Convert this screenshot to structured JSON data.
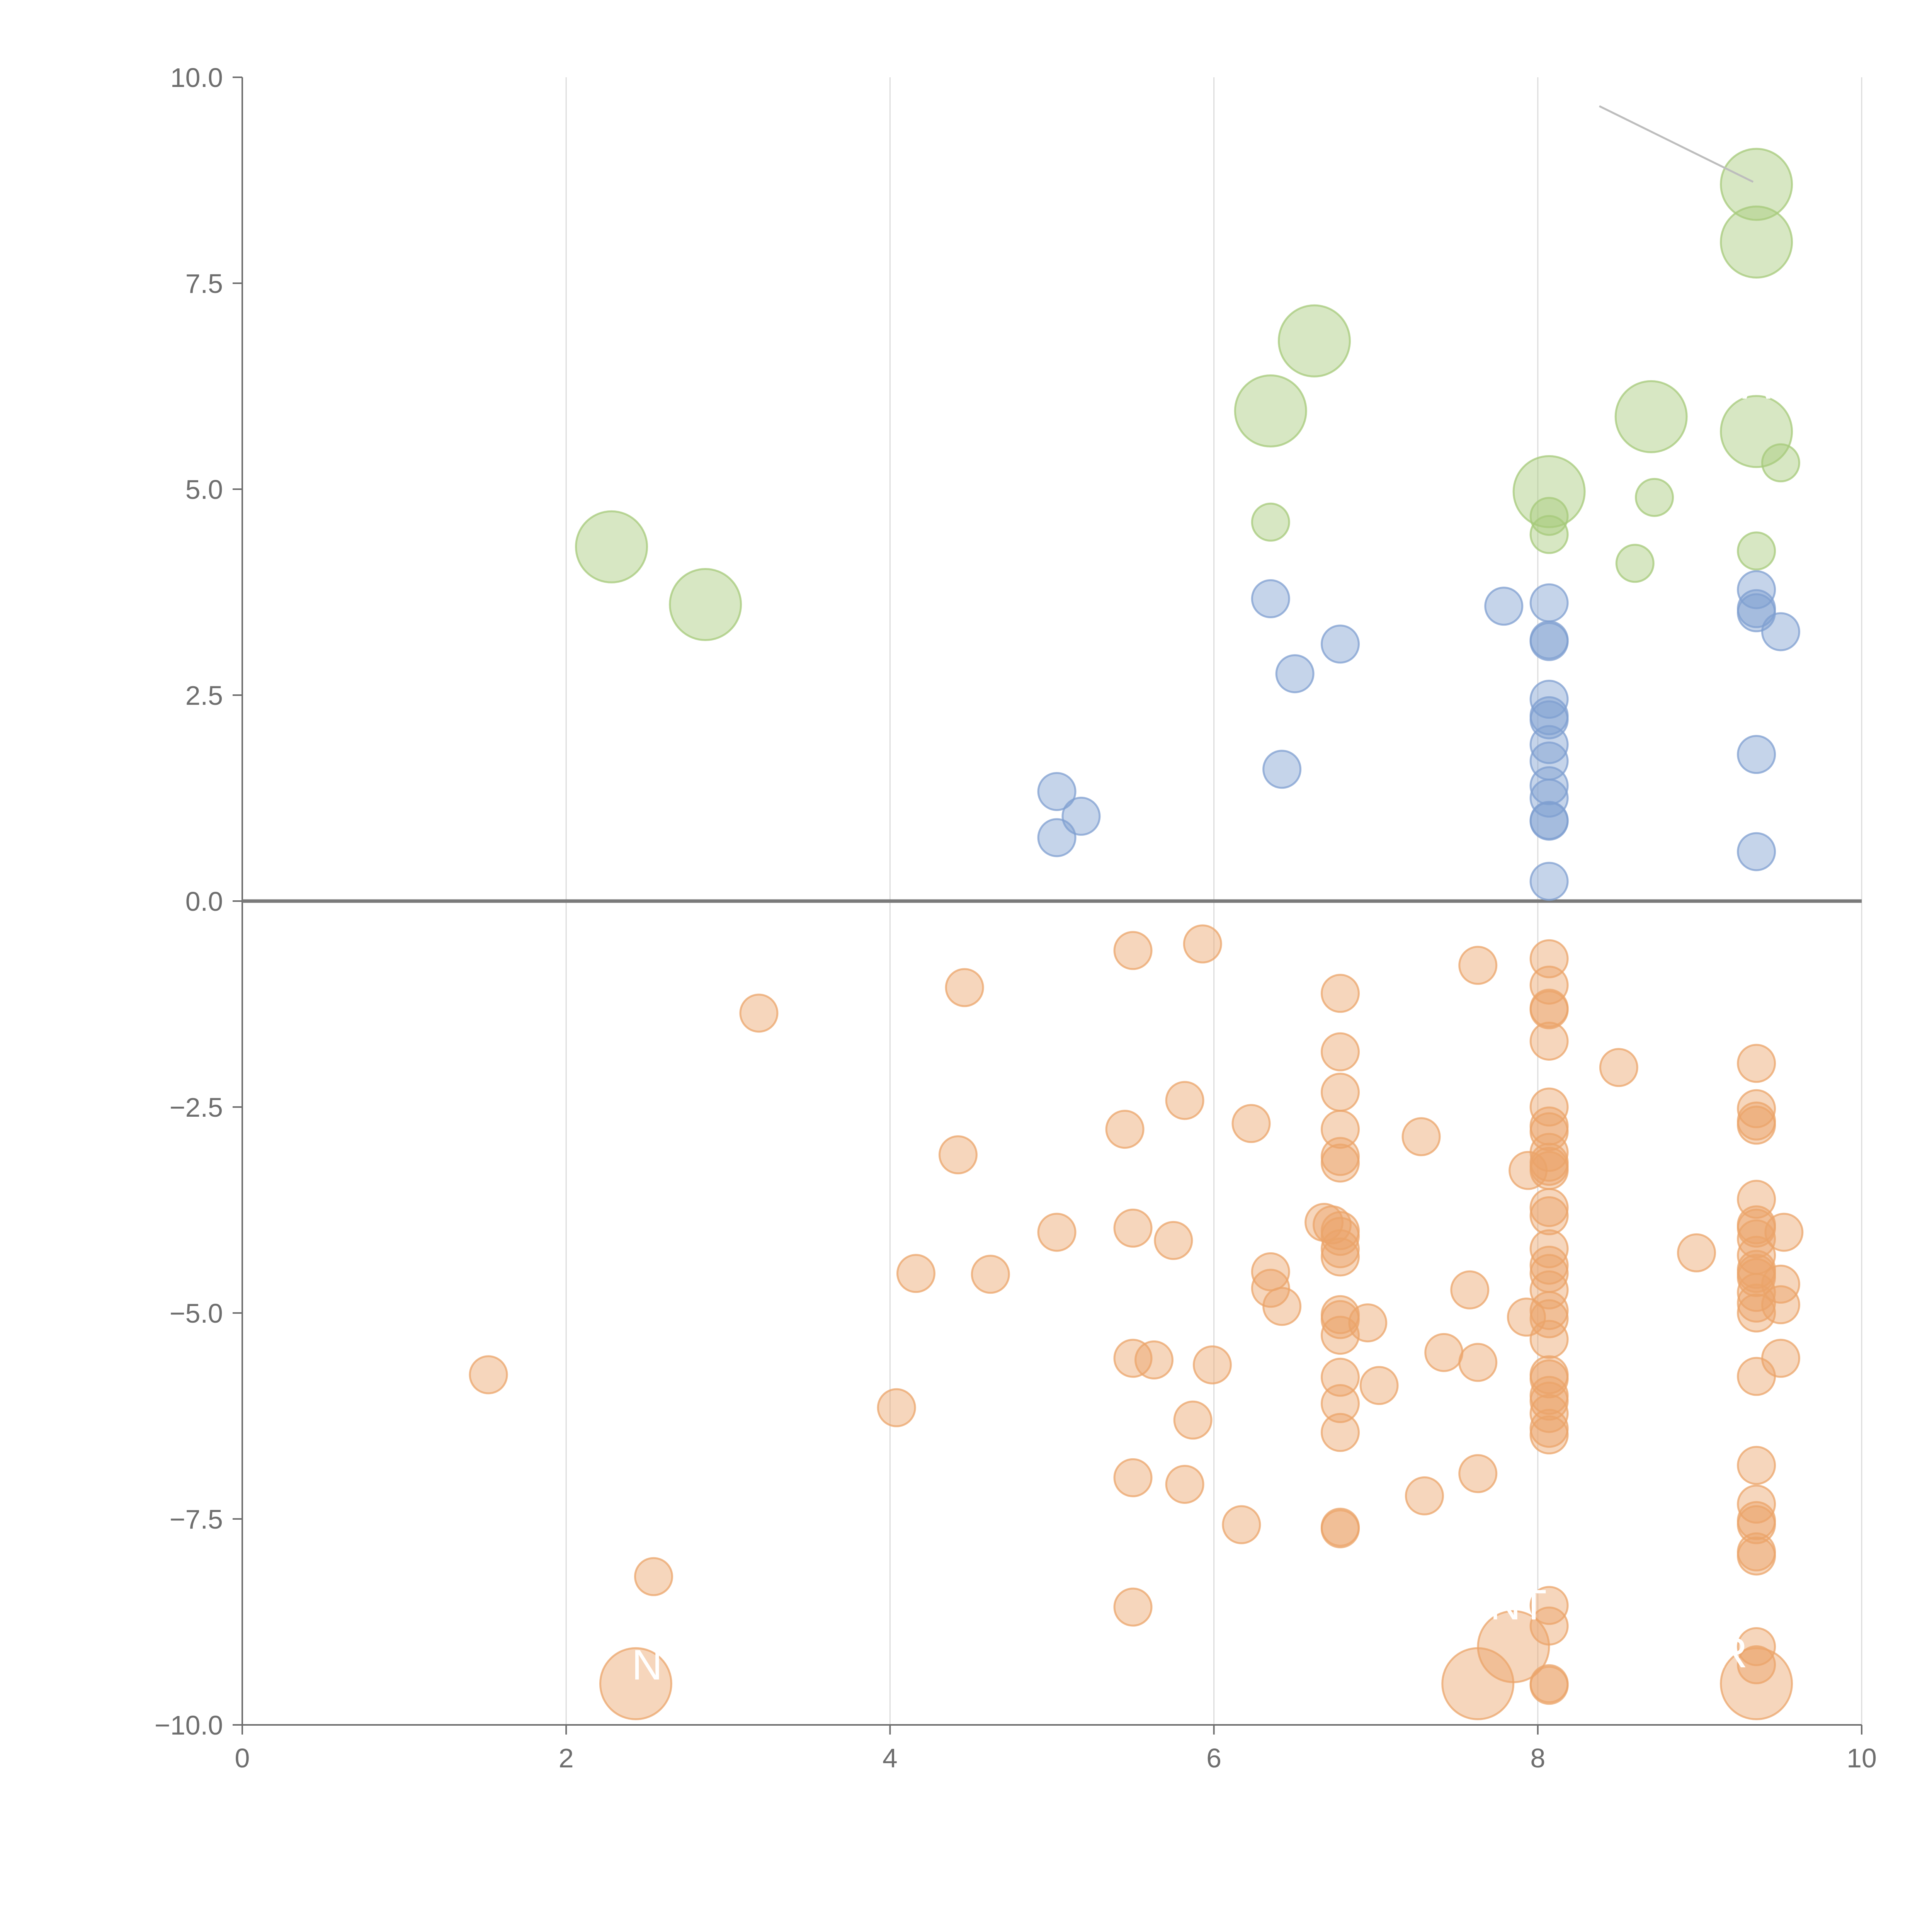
{
  "chart_data": {
    "type": "scatter",
    "title": "",
    "xlabel": "",
    "ylabel": "",
    "xlim": [
      0,
      10
    ],
    "ylim": [
      -10,
      10
    ],
    "x_ticks": [
      0,
      2,
      4,
      6,
      8,
      10
    ],
    "x_tick_labels": [
      "0",
      "2",
      "4",
      "6",
      "8",
      "10"
    ],
    "y_ticks": [
      10,
      7.5,
      5,
      2.5,
      0,
      -2.5,
      -5,
      -7.5,
      -10
    ],
    "y_tick_labels": [
      "10.0",
      "7.5",
      "5.0",
      "2.5",
      "0.0",
      "−2.5",
      "−5.0",
      "−7.5",
      "−10.0"
    ],
    "grid": "vertical lines at x ticks",
    "reference_line": {
      "y": 0
    },
    "series": [
      {
        "color": "#a6c97a",
        "points": [
          {
            "x": 9.35,
            "y": 8.7,
            "size": "large"
          },
          {
            "x": 9.35,
            "y": 8.0,
            "size": "large"
          },
          {
            "x": 6.62,
            "y": 6.8,
            "size": "large"
          },
          {
            "x": 6.35,
            "y": 5.95,
            "size": "large"
          },
          {
            "x": 8.7,
            "y": 5.88,
            "size": "large"
          },
          {
            "x": 9.35,
            "y": 5.7,
            "size": "large"
          },
          {
            "x": 9.5,
            "y": 5.32,
            "size": "small"
          },
          {
            "x": 8.07,
            "y": 4.97,
            "size": "large"
          },
          {
            "x": 8.72,
            "y": 4.9,
            "size": "small"
          },
          {
            "x": 8.07,
            "y": 4.67,
            "size": "small"
          },
          {
            "x": 6.35,
            "y": 4.6,
            "size": "small"
          },
          {
            "x": 8.07,
            "y": 4.45,
            "size": "small"
          },
          {
            "x": 2.28,
            "y": 4.3,
            "size": "large"
          },
          {
            "x": 9.35,
            "y": 4.25,
            "size": "small"
          },
          {
            "x": 8.6,
            "y": 4.1,
            "size": "small"
          },
          {
            "x": 2.86,
            "y": 3.6,
            "size": "large"
          }
        ]
      },
      {
        "color": "#7f9fd0",
        "points": [
          {
            "x": 9.35,
            "y": 3.78
          },
          {
            "x": 6.35,
            "y": 3.67
          },
          {
            "x": 8.07,
            "y": 3.62
          },
          {
            "x": 7.79,
            "y": 3.58
          },
          {
            "x": 9.35,
            "y": 3.55
          },
          {
            "x": 9.35,
            "y": 3.5
          },
          {
            "x": 9.5,
            "y": 3.27
          },
          {
            "x": 8.07,
            "y": 3.17
          },
          {
            "x": 8.07,
            "y": 3.15
          },
          {
            "x": 6.78,
            "y": 3.12
          },
          {
            "x": 6.5,
            "y": 2.76
          },
          {
            "x": 8.07,
            "y": 2.45
          },
          {
            "x": 8.07,
            "y": 2.25
          },
          {
            "x": 8.07,
            "y": 2.2
          },
          {
            "x": 8.07,
            "y": 1.9
          },
          {
            "x": 9.35,
            "y": 1.78
          },
          {
            "x": 8.07,
            "y": 1.7
          },
          {
            "x": 6.42,
            "y": 1.6
          },
          {
            "x": 8.07,
            "y": 1.4
          },
          {
            "x": 5.03,
            "y": 1.33
          },
          {
            "x": 8.07,
            "y": 1.25
          },
          {
            "x": 5.18,
            "y": 1.03
          },
          {
            "x": 8.07,
            "y": 0.98
          },
          {
            "x": 8.07,
            "y": 0.97
          },
          {
            "x": 5.03,
            "y": 0.77
          },
          {
            "x": 9.35,
            "y": 0.6
          },
          {
            "x": 8.07,
            "y": 0.24
          }
        ]
      },
      {
        "color": "#eba46a",
        "points": [
          {
            "x": 5.93,
            "y": -0.52
          },
          {
            "x": 5.5,
            "y": -0.6
          },
          {
            "x": 8.07,
            "y": -0.7
          },
          {
            "x": 7.63,
            "y": -0.78
          },
          {
            "x": 8.07,
            "y": -1.02
          },
          {
            "x": 4.46,
            "y": -1.05
          },
          {
            "x": 6.78,
            "y": -1.12
          },
          {
            "x": 8.07,
            "y": -1.3
          },
          {
            "x": 8.07,
            "y": -1.32
          },
          {
            "x": 3.19,
            "y": -1.36
          },
          {
            "x": 8.07,
            "y": -1.7
          },
          {
            "x": 6.78,
            "y": -1.83
          },
          {
            "x": 9.35,
            "y": -1.97
          },
          {
            "x": 8.5,
            "y": -2.02
          },
          {
            "x": 6.78,
            "y": -2.32
          },
          {
            "x": 5.82,
            "y": -2.42
          },
          {
            "x": 8.07,
            "y": -2.5
          },
          {
            "x": 9.35,
            "y": -2.52
          },
          {
            "x": 9.35,
            "y": -2.67
          },
          {
            "x": 6.23,
            "y": -2.7
          },
          {
            "x": 9.35,
            "y": -2.72
          },
          {
            "x": 8.07,
            "y": -2.73
          },
          {
            "x": 6.78,
            "y": -2.77
          },
          {
            "x": 5.45,
            "y": -2.77
          },
          {
            "x": 8.07,
            "y": -2.8
          },
          {
            "x": 7.28,
            "y": -2.86
          },
          {
            "x": 8.07,
            "y": -3.05
          },
          {
            "x": 4.42,
            "y": -3.08
          },
          {
            "x": 6.78,
            "y": -3.1
          },
          {
            "x": 6.78,
            "y": -3.18
          },
          {
            "x": 8.07,
            "y": -3.17
          },
          {
            "x": 8.07,
            "y": -3.22
          },
          {
            "x": 7.94,
            "y": -3.27
          },
          {
            "x": 8.07,
            "y": -3.27
          },
          {
            "x": 9.35,
            "y": -3.62
          },
          {
            "x": 8.07,
            "y": -3.72
          },
          {
            "x": 8.07,
            "y": -3.82
          },
          {
            "x": 6.68,
            "y": -3.9
          },
          {
            "x": 6.73,
            "y": -3.93
          },
          {
            "x": 9.35,
            "y": -3.93
          },
          {
            "x": 9.35,
            "y": -3.97
          },
          {
            "x": 5.5,
            "y": -3.97
          },
          {
            "x": 6.78,
            "y": -4.0
          },
          {
            "x": 5.03,
            "y": -4.02
          },
          {
            "x": 9.52,
            "y": -4.02
          },
          {
            "x": 6.78,
            "y": -4.07
          },
          {
            "x": 9.35,
            "y": -4.1
          },
          {
            "x": 5.75,
            "y": -4.12
          },
          {
            "x": 8.07,
            "y": -4.22
          },
          {
            "x": 6.78,
            "y": -4.22
          },
          {
            "x": 8.98,
            "y": -4.27
          },
          {
            "x": 9.35,
            "y": -4.3
          },
          {
            "x": 6.78,
            "y": -4.32
          },
          {
            "x": 8.07,
            "y": -4.42
          },
          {
            "x": 9.35,
            "y": -4.47
          },
          {
            "x": 6.35,
            "y": -4.5
          },
          {
            "x": 9.35,
            "y": -4.52
          },
          {
            "x": 4.16,
            "y": -4.52
          },
          {
            "x": 8.07,
            "y": -4.52
          },
          {
            "x": 4.62,
            "y": -4.53
          },
          {
            "x": 9.35,
            "y": -4.57
          },
          {
            "x": 9.5,
            "y": -4.65
          },
          {
            "x": 6.35,
            "y": -4.7
          },
          {
            "x": 7.58,
            "y": -4.72
          },
          {
            "x": 8.07,
            "y": -4.72
          },
          {
            "x": 9.35,
            "y": -4.75
          },
          {
            "x": 9.35,
            "y": -4.88
          },
          {
            "x": 9.5,
            "y": -4.9
          },
          {
            "x": 6.42,
            "y": -4.92
          },
          {
            "x": 8.07,
            "y": -4.97
          },
          {
            "x": 6.78,
            "y": -5.02
          },
          {
            "x": 9.35,
            "y": -5.0
          },
          {
            "x": 7.93,
            "y": -5.05
          },
          {
            "x": 8.07,
            "y": -5.07
          },
          {
            "x": 6.78,
            "y": -5.08
          },
          {
            "x": 6.95,
            "y": -5.12
          },
          {
            "x": 6.78,
            "y": -5.27
          },
          {
            "x": 8.07,
            "y": -5.32
          },
          {
            "x": 7.42,
            "y": -5.48
          },
          {
            "x": 5.5,
            "y": -5.55
          },
          {
            "x": 9.5,
            "y": -5.55
          },
          {
            "x": 5.63,
            "y": -5.57
          },
          {
            "x": 7.63,
            "y": -5.6
          },
          {
            "x": 5.99,
            "y": -5.63
          },
          {
            "x": 1.52,
            "y": -5.75
          },
          {
            "x": 8.07,
            "y": -5.75
          },
          {
            "x": 9.35,
            "y": -5.77
          },
          {
            "x": 6.78,
            "y": -5.78
          },
          {
            "x": 8.07,
            "y": -5.8
          },
          {
            "x": 7.02,
            "y": -5.88
          },
          {
            "x": 8.07,
            "y": -6.0
          },
          {
            "x": 8.07,
            "y": -6.07
          },
          {
            "x": 6.78,
            "y": -6.1
          },
          {
            "x": 4.04,
            "y": -6.15
          },
          {
            "x": 8.07,
            "y": -6.22
          },
          {
            "x": 5.87,
            "y": -6.3
          },
          {
            "x": 8.07,
            "y": -6.4
          },
          {
            "x": 6.78,
            "y": -6.45
          },
          {
            "x": 8.07,
            "y": -6.48
          },
          {
            "x": 9.35,
            "y": -6.85
          },
          {
            "x": 7.63,
            "y": -6.95
          },
          {
            "x": 5.5,
            "y": -7.0
          },
          {
            "x": 5.82,
            "y": -7.08
          },
          {
            "x": 7.3,
            "y": -7.22
          },
          {
            "x": 9.35,
            "y": -7.32
          },
          {
            "x": 9.35,
            "y": -7.52
          },
          {
            "x": 6.17,
            "y": -7.57
          },
          {
            "x": 9.35,
            "y": -7.57
          },
          {
            "x": 6.78,
            "y": -7.6
          },
          {
            "x": 6.78,
            "y": -7.62
          },
          {
            "x": 9.35,
            "y": -7.9
          },
          {
            "x": 9.35,
            "y": -7.95
          },
          {
            "x": 2.54,
            "y": -8.2
          },
          {
            "x": 8.07,
            "y": -8.55
          },
          {
            "x": 5.5,
            "y": -8.57
          },
          {
            "x": 8.07,
            "y": -8.8
          },
          {
            "x": 7.85,
            "y": -9.05,
            "size": "large"
          },
          {
            "x": 9.35,
            "y": -9.05
          },
          {
            "x": 9.35,
            "y": -9.27
          },
          {
            "x": 8.07,
            "y": -9.5
          },
          {
            "x": 8.07,
            "y": -9.52
          },
          {
            "x": 2.43,
            "y": -9.5,
            "size": "large"
          },
          {
            "x": 7.63,
            "y": -9.5,
            "size": "large"
          },
          {
            "x": 9.35,
            "y": -9.5,
            "size": "large"
          }
        ]
      }
    ],
    "annotations": [
      {
        "text": "N",
        "x": 2.5,
        "y": -9.45
      },
      {
        "text": "NT",
        "x": 7.88,
        "y": -8.72
      },
      {
        "text": "R",
        "x": 9.2,
        "y": -9.3
      },
      {
        "text": "A",
        "x": 9.35,
        "y": 6.1
      }
    ],
    "leader_lines": [
      {
        "x1": 8.38,
        "y1": 9.65,
        "x2": 9.33,
        "y2": 8.73,
        "color": "#bdbdbd"
      }
    ]
  }
}
